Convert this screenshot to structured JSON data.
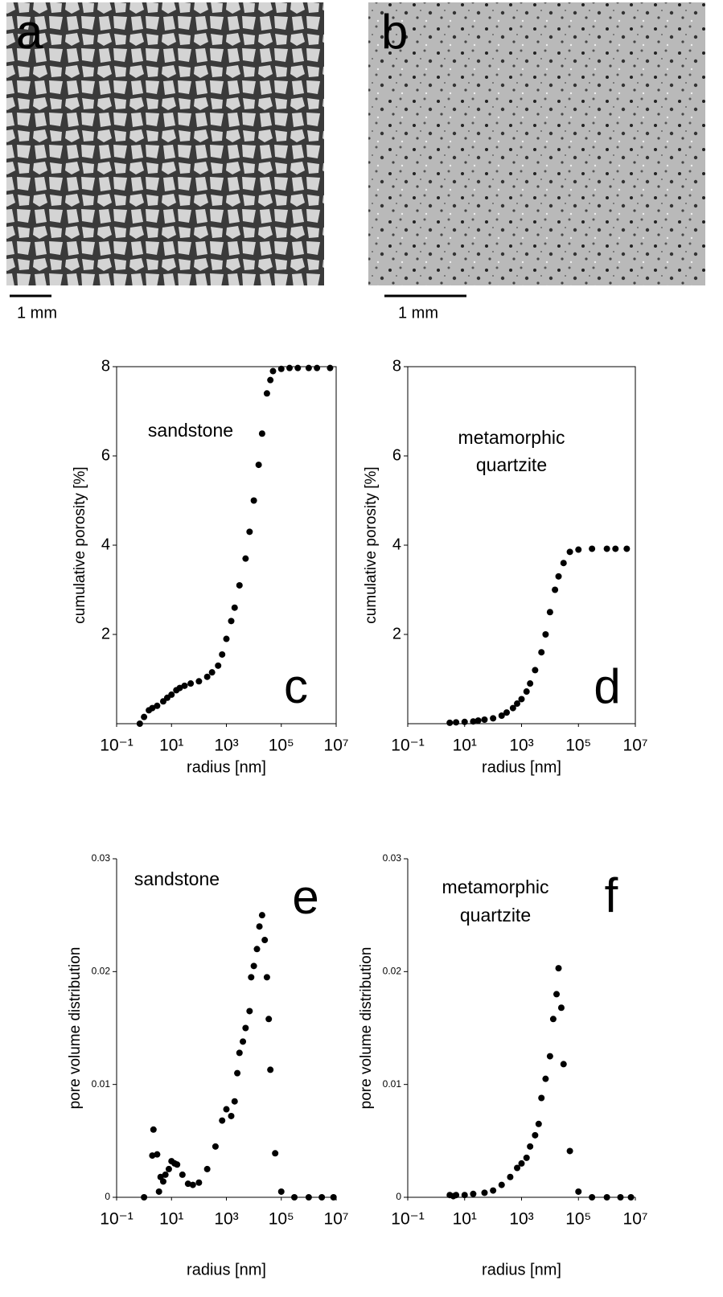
{
  "images": [
    {
      "label": "a",
      "scale": "1 mm"
    },
    {
      "label": "b",
      "scale": "1 mm"
    }
  ],
  "chart_data": [
    {
      "type": "scatter",
      "panel": "c",
      "annotation": [
        "sandstone"
      ],
      "xlabel": "radius [nm]",
      "ylabel": "cumulative porosity [%]",
      "log_x": true,
      "frame": true,
      "color": "#000000",
      "xlim": [
        0.1,
        10000000
      ],
      "xticks": [
        {
          "value": 0.1,
          "label": "10⁻¹"
        },
        {
          "value": 10,
          "label": "10¹"
        },
        {
          "value": 1000,
          "label": "10³"
        },
        {
          "value": 100000,
          "label": "10⁵"
        },
        {
          "value": 10000000,
          "label": "10⁷"
        }
      ],
      "ylim": [
        0,
        8
      ],
      "yticks": [
        2,
        4,
        6,
        8
      ],
      "x": [
        0.7,
        1,
        1.5,
        2,
        3,
        5,
        7,
        10,
        15,
        20,
        30,
        50,
        100,
        200,
        300,
        500,
        700,
        1000,
        1500,
        2000,
        3000,
        5000,
        7000,
        10000,
        15000,
        20000,
        30000,
        40000,
        50000,
        100000,
        200000,
        400000,
        1000000,
        2000000,
        6000000
      ],
      "values": [
        0,
        0.15,
        0.3,
        0.35,
        0.4,
        0.5,
        0.58,
        0.65,
        0.75,
        0.8,
        0.85,
        0.9,
        0.95,
        1.05,
        1.15,
        1.3,
        1.55,
        1.9,
        2.3,
        2.6,
        3.1,
        3.7,
        4.3,
        5.0,
        5.8,
        6.5,
        7.4,
        7.7,
        7.9,
        7.95,
        7.97,
        7.97,
        7.97,
        7.97,
        7.97
      ]
    },
    {
      "type": "scatter",
      "panel": "d",
      "annotation": [
        "metamorphic",
        "quartzite"
      ],
      "xlabel": "radius [nm]",
      "ylabel": "cumulative porosity [%]",
      "log_x": true,
      "frame": true,
      "color": "#000000",
      "xlim": [
        0.1,
        10000000
      ],
      "xticks": [
        {
          "value": 0.1,
          "label": "10⁻¹"
        },
        {
          "value": 10,
          "label": "10¹"
        },
        {
          "value": 1000,
          "label": "10³"
        },
        {
          "value": 100000,
          "label": "10⁵"
        },
        {
          "value": 10000000,
          "label": "10⁷"
        }
      ],
      "ylim": [
        0,
        8
      ],
      "yticks": [
        2,
        4,
        6,
        8
      ],
      "x": [
        3,
        5,
        10,
        20,
        30,
        50,
        100,
        200,
        300,
        500,
        700,
        1000,
        1500,
        2000,
        3000,
        5000,
        7000,
        10000,
        15000,
        20000,
        30000,
        50000,
        100000,
        300000,
        1000000,
        2000000,
        5000000
      ],
      "values": [
        0.02,
        0.03,
        0.04,
        0.05,
        0.07,
        0.09,
        0.12,
        0.18,
        0.25,
        0.35,
        0.45,
        0.55,
        0.72,
        0.9,
        1.2,
        1.6,
        2.0,
        2.5,
        3.0,
        3.3,
        3.6,
        3.85,
        3.9,
        3.92,
        3.92,
        3.92,
        3.92
      ]
    },
    {
      "type": "scatter",
      "panel": "e",
      "annotation": [
        "sandstone"
      ],
      "xlabel": "radius [nm]",
      "ylabel": "pore volume distribution",
      "log_x": true,
      "frame": false,
      "color": "#000000",
      "xlim": [
        0.1,
        10000000
      ],
      "xticks": [
        {
          "value": 0.1,
          "label": "10⁻¹"
        },
        {
          "value": 10,
          "label": "10¹"
        },
        {
          "value": 1000,
          "label": "10³"
        },
        {
          "value": 100000,
          "label": "10⁵"
        },
        {
          "value": 10000000,
          "label": "10⁷"
        }
      ],
      "ylim": [
        0,
        0.03
      ],
      "yticks": [
        0,
        0.01,
        0.02,
        0.03
      ],
      "x": [
        1,
        2,
        2.2,
        3,
        3.5,
        4,
        5,
        6,
        8,
        10,
        13,
        16,
        25,
        40,
        60,
        100,
        200,
        400,
        700,
        1000,
        1500,
        2000,
        2500,
        3000,
        4000,
        5000,
        7000,
        8000,
        10000,
        13000,
        16000,
        20000,
        25000,
        30000,
        35000,
        40000,
        60000,
        100000,
        300000,
        1000000,
        3000000,
        8000000
      ],
      "values": [
        0,
        0.0037,
        0.006,
        0.0038,
        0.0005,
        0.0018,
        0.0014,
        0.002,
        0.0025,
        0.0032,
        0.003,
        0.0029,
        0.002,
        0.0012,
        0.0011,
        0.0013,
        0.0025,
        0.0045,
        0.0068,
        0.0078,
        0.0072,
        0.0085,
        0.011,
        0.0128,
        0.0138,
        0.015,
        0.0165,
        0.0195,
        0.0205,
        0.022,
        0.024,
        0.025,
        0.0228,
        0.0195,
        0.0158,
        0.0113,
        0.0039,
        0.0005,
        0,
        0,
        0,
        0
      ]
    },
    {
      "type": "scatter",
      "panel": "f",
      "annotation": [
        "metamorphic",
        "quartzite"
      ],
      "xlabel": "radius [nm]",
      "ylabel": "pore volume distribution",
      "log_x": true,
      "frame": false,
      "color": "#000000",
      "xlim": [
        0.1,
        10000000
      ],
      "xticks": [
        {
          "value": 0.1,
          "label": "10⁻¹"
        },
        {
          "value": 10,
          "label": "10¹"
        },
        {
          "value": 1000,
          "label": "10³"
        },
        {
          "value": 100000,
          "label": "10⁵"
        },
        {
          "value": 10000000,
          "label": "10⁷"
        }
      ],
      "ylim": [
        0,
        0.03
      ],
      "yticks": [
        0,
        0.01,
        0.02,
        0.03
      ],
      "x": [
        3,
        4,
        5,
        10,
        20,
        50,
        100,
        200,
        400,
        700,
        1000,
        1500,
        2000,
        3000,
        4000,
        5000,
        7000,
        10000,
        13000,
        17000,
        20000,
        25000,
        30000,
        50000,
        100000,
        300000,
        1000000,
        3000000,
        7000000
      ],
      "values": [
        0.0002,
        0.0001,
        0.0002,
        0.0002,
        0.0003,
        0.0004,
        0.0006,
        0.0011,
        0.0018,
        0.0026,
        0.003,
        0.0035,
        0.0045,
        0.0055,
        0.0065,
        0.0088,
        0.0105,
        0.0125,
        0.0158,
        0.018,
        0.0203,
        0.0168,
        0.0118,
        0.0041,
        0.0005,
        0,
        0,
        0,
        0
      ]
    }
  ]
}
